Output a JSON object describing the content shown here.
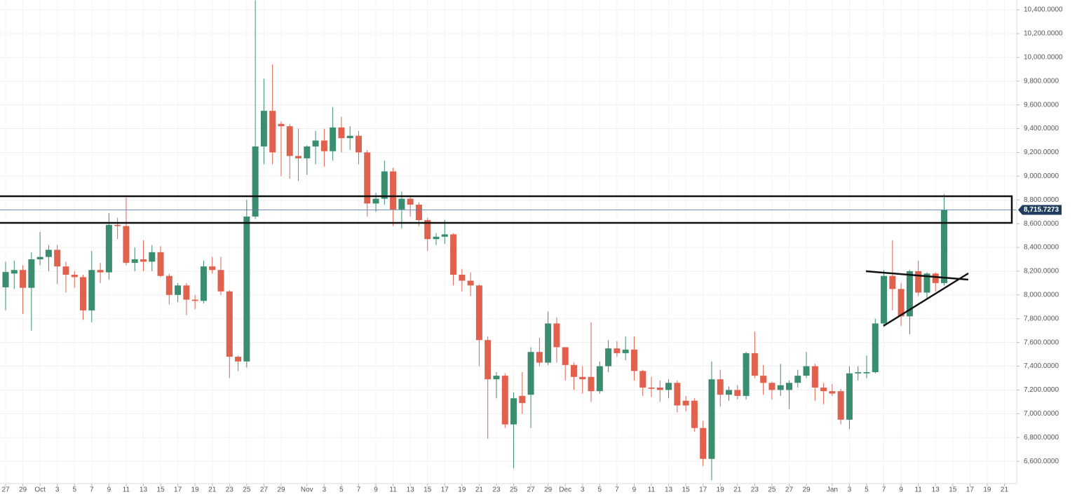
{
  "chart_data": {
    "type": "candlestick",
    "up_color": "#3b8d6f",
    "down_color": "#e0614e",
    "grid": true,
    "ylim": [
      6412,
      10483
    ],
    "yticks": [
      {
        "value": 6600,
        "label": "6,600.0000"
      },
      {
        "value": 6800,
        "label": "6,800.0000"
      },
      {
        "value": 7000,
        "label": "7,000.0000"
      },
      {
        "value": 7200,
        "label": "7,200.0000"
      },
      {
        "value": 7400,
        "label": "7,400.0000"
      },
      {
        "value": 7600,
        "label": "7,600.0000"
      },
      {
        "value": 7800,
        "label": "7,800.0000"
      },
      {
        "value": 8000,
        "label": "8,000.0000"
      },
      {
        "value": 8200,
        "label": "8,200.0000"
      },
      {
        "value": 8400,
        "label": "8,400.0000"
      },
      {
        "value": 8600,
        "label": "8,600.0000"
      },
      {
        "value": 8800,
        "label": "8,800.0000"
      },
      {
        "value": 9000,
        "label": "9,000.0000"
      },
      {
        "value": 9200,
        "label": "9,200.0000"
      },
      {
        "value": 9400,
        "label": "9,400.0000"
      },
      {
        "value": 9600,
        "label": "9,600.0000"
      },
      {
        "value": 9800,
        "label": "9,800.0000"
      },
      {
        "value": 10000,
        "label": "10,000.0000"
      },
      {
        "value": 10200,
        "label": "10,200.0000"
      },
      {
        "value": 10400,
        "label": "10,400.0000"
      }
    ],
    "last_price": {
      "value": 8715.7273,
      "label": "8,715.7273"
    },
    "categories": [
      "Sep 27",
      "Sep 28",
      "Sep 29",
      "Sep 30",
      "Oct 1",
      "Oct 2",
      "Oct 3",
      "Oct 4",
      "Oct 5",
      "Oct 6",
      "Oct 7",
      "Oct 8",
      "Oct 9",
      "Oct 10",
      "Oct 11",
      "Oct 12",
      "Oct 13",
      "Oct 14",
      "Oct 15",
      "Oct 16",
      "Oct 17",
      "Oct 18",
      "Oct 19",
      "Oct 20",
      "Oct 21",
      "Oct 22",
      "Oct 23",
      "Oct 24",
      "Oct 25",
      "Oct 26",
      "Oct 27",
      "Oct 28",
      "Oct 29",
      "Oct 30",
      "Oct 31",
      "Nov 1",
      "Nov 2",
      "Nov 3",
      "Nov 4",
      "Nov 5",
      "Nov 6",
      "Nov 7",
      "Nov 8",
      "Nov 9",
      "Nov 10",
      "Nov 11",
      "Nov 12",
      "Nov 13",
      "Nov 14",
      "Nov 15",
      "Nov 16",
      "Nov 17",
      "Nov 18",
      "Nov 19",
      "Nov 20",
      "Nov 21",
      "Nov 22",
      "Nov 23",
      "Nov 24",
      "Nov 25",
      "Nov 26",
      "Nov 27",
      "Nov 28",
      "Nov 29",
      "Nov 30",
      "Dec 1",
      "Dec 2",
      "Dec 3",
      "Dec 4",
      "Dec 5",
      "Dec 6",
      "Dec 7",
      "Dec 8",
      "Dec 9",
      "Dec 10",
      "Dec 11",
      "Dec 12",
      "Dec 13",
      "Dec 14",
      "Dec 15",
      "Dec 16",
      "Dec 17",
      "Dec 18",
      "Dec 19",
      "Dec 20",
      "Dec 21",
      "Dec 22",
      "Dec 23",
      "Dec 24",
      "Dec 25",
      "Dec 26",
      "Dec 27",
      "Dec 28",
      "Dec 29",
      "Dec 30",
      "Dec 31",
      "Jan 1",
      "Jan 2",
      "Jan 3",
      "Jan 4",
      "Jan 5",
      "Jan 6",
      "Jan 7",
      "Jan 8",
      "Jan 9",
      "Jan 10",
      "Jan 11",
      "Jan 12",
      "Jan 13",
      "Jan 14",
      "Jan 15",
      "Jan 16",
      "Jan 17",
      "Jan 18",
      "Jan 19",
      "Jan 20",
      "Jan 21"
    ],
    "open": [
      8064,
      8180,
      8210,
      8060,
      8300,
      8320,
      8380,
      8240,
      8170,
      8150,
      7870,
      8210,
      8190,
      8590,
      8580,
      8270,
      8300,
      8280,
      8360,
      8160,
      8000,
      8080,
      7960,
      7950,
      8240,
      8210,
      8030,
      7480,
      7440,
      8660,
      9250,
      9550,
      9440,
      9420,
      9170,
      9150,
      9250,
      9300,
      9210,
      9410,
      9320,
      9340,
      9200,
      8770,
      8810,
      9040,
      8720,
      8810,
      8760,
      8630,
      8470,
      8490,
      8510,
      8170,
      8120,
      8080,
      7620,
      7290,
      7320,
      6910,
      7150,
      7160,
      7520,
      7430,
      7760,
      7560,
      7410,
      7310,
      7310,
      7190,
      7400,
      7550,
      7510,
      7540,
      7360,
      7220,
      7220,
      7200,
      7260,
      7110,
      7110,
      6880,
      6620,
      7290,
      7160,
      7200,
      7150,
      7510,
      7320,
      7260,
      7200,
      7200,
      7260,
      7320,
      7400,
      7220,
      7190,
      7190,
      6950,
      7340,
      7340,
      7350,
      7760,
      8160,
      8050,
      7820,
      8200,
      8020,
      8180,
      8100,
      null,
      null,
      null,
      null,
      null,
      null,
      null
    ],
    "high": [
      8280,
      8290,
      8250,
      8360,
      8530,
      8420,
      8420,
      8280,
      8200,
      8170,
      8370,
      8270,
      8690,
      8650,
      8820,
      8400,
      8460,
      8420,
      8410,
      8180,
      8100,
      8100,
      8000,
      8290,
      8320,
      8320,
      8040,
      7490,
      8800,
      10480,
      9820,
      9940,
      9460,
      9440,
      9400,
      9260,
      9380,
      9400,
      9580,
      9500,
      9420,
      9380,
      9220,
      8860,
      9130,
      9070,
      8870,
      8830,
      8780,
      8650,
      8520,
      8630,
      8520,
      8220,
      8190,
      8090,
      7650,
      7350,
      7340,
      7180,
      7350,
      7560,
      7640,
      7860,
      7810,
      7560,
      7430,
      7400,
      7770,
      7440,
      7620,
      7610,
      7650,
      7650,
      7370,
      7310,
      7280,
      7290,
      7280,
      7150,
      7130,
      6940,
      7440,
      7370,
      7230,
      7240,
      7520,
      7690,
      7410,
      7270,
      7420,
      7280,
      7370,
      7520,
      7420,
      7260,
      7250,
      7210,
      7400,
      7400,
      7490,
      7800,
      8210,
      8460,
      8100,
      8210,
      8290,
      8190,
      8190,
      8850,
      null,
      null,
      null,
      null,
      null,
      null,
      null
    ],
    "low": [
      7870,
      8050,
      7840,
      7700,
      8250,
      8200,
      8090,
      8020,
      8060,
      7790,
      7770,
      8100,
      8130,
      8470,
      8250,
      8200,
      8200,
      8200,
      8150,
      7920,
      7940,
      7830,
      7880,
      7930,
      8180,
      8000,
      7300,
      7360,
      7390,
      8640,
      9100,
      9100,
      9000,
      8980,
      8960,
      9010,
      9100,
      9080,
      9130,
      9200,
      9220,
      9100,
      8660,
      8700,
      8760,
      8580,
      8560,
      8660,
      8580,
      8370,
      8420,
      8430,
      8080,
      8030,
      7990,
      7400,
      6790,
      7130,
      6880,
      6540,
      7000,
      6880,
      7400,
      7410,
      7430,
      7280,
      7200,
      7170,
      7100,
      7170,
      7350,
      7480,
      7450,
      7280,
      7150,
      7140,
      7100,
      7130,
      7010,
      7020,
      6850,
      6560,
      6440,
      7060,
      7110,
      7120,
      7120,
      7300,
      7160,
      7120,
      7150,
      7040,
      7220,
      7300,
      7110,
      7080,
      7150,
      6910,
      6870,
      7280,
      7300,
      7340,
      7730,
      7870,
      7740,
      7670,
      7990,
      7960,
      8030,
      8080,
      null,
      null,
      null,
      null,
      null,
      null,
      null
    ],
    "close": [
      8193,
      8210,
      8060,
      8300,
      8320,
      8380,
      8240,
      8170,
      8150,
      7870,
      8210,
      8190,
      8590,
      8580,
      8270,
      8300,
      8280,
      8360,
      8160,
      8000,
      8080,
      7960,
      7950,
      8240,
      8210,
      8030,
      7480,
      7440,
      8660,
      9250,
      9550,
      9200,
      9420,
      9170,
      9150,
      9250,
      9300,
      9210,
      9410,
      9320,
      9340,
      9200,
      8770,
      8810,
      9040,
      8720,
      8810,
      8760,
      8630,
      8470,
      8490,
      8510,
      8170,
      8120,
      8080,
      7620,
      7290,
      7320,
      6910,
      7130,
      7090,
      7520,
      7430,
      7760,
      7560,
      7410,
      7310,
      7290,
      7190,
      7400,
      7550,
      7510,
      7540,
      7360,
      7220,
      7210,
      7200,
      7260,
      7070,
      7070,
      6880,
      6620,
      7290,
      7160,
      7200,
      7150,
      7510,
      7320,
      7260,
      7200,
      7240,
      7260,
      7320,
      7400,
      7220,
      7190,
      7170,
      6950,
      7340,
      7350,
      7350,
      7760,
      8160,
      8050,
      7820,
      8200,
      8020,
      8180,
      8100,
      8715.7273,
      null,
      null,
      null,
      null,
      null,
      null,
      null
    ],
    "xticks": [
      {
        "value": "Sep 27",
        "label": "27"
      },
      {
        "value": "Sep 29",
        "label": "29"
      },
      {
        "value": "Oct 1",
        "label": "Oct"
      },
      {
        "value": "Oct 3",
        "label": "3"
      },
      {
        "value": "Oct 5",
        "label": "5"
      },
      {
        "value": "Oct 7",
        "label": "7"
      },
      {
        "value": "Oct 9",
        "label": "9"
      },
      {
        "value": "Oct 11",
        "label": "11"
      },
      {
        "value": "Oct 13",
        "label": "13"
      },
      {
        "value": "Oct 15",
        "label": "15"
      },
      {
        "value": "Oct 17",
        "label": "17"
      },
      {
        "value": "Oct 19",
        "label": "19"
      },
      {
        "value": "Oct 21",
        "label": "21"
      },
      {
        "value": "Oct 23",
        "label": "23"
      },
      {
        "value": "Oct 25",
        "label": "25"
      },
      {
        "value": "Oct 27",
        "label": "27"
      },
      {
        "value": "Oct 29",
        "label": "29"
      },
      {
        "value": "Nov 1",
        "label": "Nov"
      },
      {
        "value": "Nov 3",
        "label": "3"
      },
      {
        "value": "Nov 5",
        "label": "5"
      },
      {
        "value": "Nov 7",
        "label": "7"
      },
      {
        "value": "Nov 9",
        "label": "9"
      },
      {
        "value": "Nov 11",
        "label": "11"
      },
      {
        "value": "Nov 13",
        "label": "13"
      },
      {
        "value": "Nov 15",
        "label": "15"
      },
      {
        "value": "Nov 17",
        "label": "17"
      },
      {
        "value": "Nov 19",
        "label": "19"
      },
      {
        "value": "Nov 21",
        "label": "21"
      },
      {
        "value": "Nov 23",
        "label": "23"
      },
      {
        "value": "Nov 25",
        "label": "25"
      },
      {
        "value": "Nov 27",
        "label": "27"
      },
      {
        "value": "Nov 29",
        "label": "29"
      },
      {
        "value": "Dec 1",
        "label": "Dec"
      },
      {
        "value": "Dec 3",
        "label": "3"
      },
      {
        "value": "Dec 5",
        "label": "5"
      },
      {
        "value": "Dec 7",
        "label": "7"
      },
      {
        "value": "Dec 9",
        "label": "9"
      },
      {
        "value": "Dec 11",
        "label": "11"
      },
      {
        "value": "Dec 13",
        "label": "13"
      },
      {
        "value": "Dec 15",
        "label": "15"
      },
      {
        "value": "Dec 17",
        "label": "17"
      },
      {
        "value": "Dec 19",
        "label": "19"
      },
      {
        "value": "Dec 21",
        "label": "21"
      },
      {
        "value": "Dec 23",
        "label": "23"
      },
      {
        "value": "Dec 25",
        "label": "25"
      },
      {
        "value": "Dec 27",
        "label": "27"
      },
      {
        "value": "Dec 29",
        "label": "29"
      },
      {
        "value": "Jan 1",
        "label": "Jan"
      },
      {
        "value": "Jan 3",
        "label": "3"
      },
      {
        "value": "Jan 5",
        "label": "5"
      },
      {
        "value": "Jan 7",
        "label": "7"
      },
      {
        "value": "Jan 9",
        "label": "9"
      },
      {
        "value": "Jan 11",
        "label": "11"
      },
      {
        "value": "Jan 13",
        "label": "13"
      },
      {
        "value": "Jan 15",
        "label": "15"
      },
      {
        "value": "Jan 17",
        "label": "17"
      },
      {
        "value": "Jan 19",
        "label": "19"
      },
      {
        "value": "Jan 21",
        "label": "21"
      }
    ]
  }
}
